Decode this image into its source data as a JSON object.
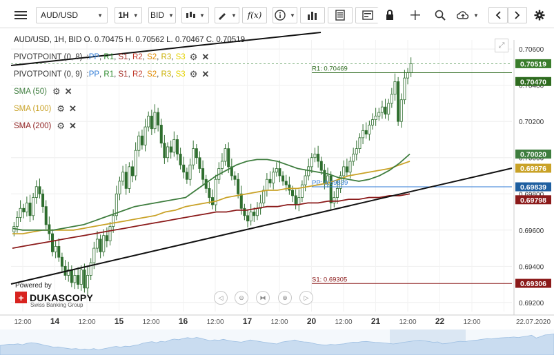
{
  "toolbar": {
    "menu_icon": "hamburger-icon",
    "symbol": "AUD/USD",
    "timeframe": "1H",
    "price_side": "BID",
    "icons": [
      "candle-type-icon",
      "draw-pencil-icon",
      "formula-icon",
      "info-icon",
      "bar-chart-icon",
      "table-icon",
      "lock-icon",
      "crosshair-icon",
      "zoom-icon",
      "cloud-upload-icon",
      "chevron-left-icon",
      "chevron-right-icon",
      "gear-icon"
    ],
    "fx_label": "f(x)"
  },
  "ohlc_text": "AUD/USD, 1H, BID   O. 0.70475 H. 0.70562 L. 0.70467 C. 0.70519",
  "indicators": [
    {
      "title": "PIVOTPOINT (0, 8)",
      "parts": [
        ":",
        "PP",
        ", ",
        "R1",
        ", ",
        "S1",
        ", ",
        "R2",
        ", ",
        "S2",
        ", ",
        "R3",
        ", ",
        "S3"
      ],
      "colors": [
        "#333",
        "#2d7ad6",
        "#333",
        "#2e8b2e",
        "#333",
        "#a0281f",
        "#333",
        "#c0392b",
        "#333",
        "#e08a00",
        "#333",
        "#c9b000",
        "#333",
        "#e6d300"
      ]
    },
    {
      "title": "PIVOTPOINT (0, 9)",
      "parts": [
        ":",
        "PP",
        ", ",
        "R1",
        ", ",
        "S1",
        ", ",
        "R2",
        ", ",
        "S2",
        ", ",
        "R3",
        ", ",
        "S3"
      ],
      "colors": [
        "#333",
        "#2d7ad6",
        "#333",
        "#2e8b2e",
        "#333",
        "#a0281f",
        "#333",
        "#c0392b",
        "#333",
        "#e08a00",
        "#333",
        "#c9b000",
        "#333",
        "#e6d300"
      ]
    },
    {
      "title": "SMA (50)",
      "color": "#3e7d3e"
    },
    {
      "title": "SMA (100)",
      "color": "#c9a227"
    },
    {
      "title": "SMA (200)",
      "color": "#8b1a1a"
    }
  ],
  "pivot_labels": {
    "r1": "R1: 0.70469",
    "s1": "S1: 0.69305",
    "pp": "PP: 0.69839"
  },
  "branding": {
    "powered": "Powered by",
    "name": "DUKASCOPY",
    "sub": "Swiss Banking Group",
    "cross": "+"
  },
  "colors": {
    "up": "#2e8b2e",
    "down": "#b22222",
    "candle": "#2e8b2e",
    "sma50": "#3e7d3e",
    "sma100": "#c9a227",
    "sma200": "#8b1a1a",
    "r1": "#2e6b1f",
    "s1": "#8b1a1a",
    "pp": "#2d7ad6",
    "trend": "#111111"
  },
  "chart_data": {
    "type": "candlestick",
    "symbol": "AUD/USD",
    "interval": "1H",
    "ylim": [
      0.6915,
      0.7065
    ],
    "y_ticks": [
      "0.70600",
      "0.70400",
      "0.70200",
      "0.70000",
      "0.69800",
      "0.69600",
      "0.69400",
      "0.69200"
    ],
    "x_ticks": [
      "12:00",
      "14",
      "12:00",
      "15",
      "12:00",
      "16",
      "12:00",
      "17",
      "12:00",
      "20",
      "12:00",
      "21",
      "12:00",
      "22",
      "12:00",
      "22.07.2020"
    ],
    "price_badges": [
      {
        "label": "0.70519",
        "value": 0.70519,
        "color": "#3a7d2c"
      },
      {
        "label": "0.70470",
        "value": 0.7047,
        "color": "#2e6b1f"
      },
      {
        "label": "0.70020",
        "value": 0.7002,
        "color": "#3e7d3e"
      },
      {
        "label": "0.69976",
        "value": 0.69976,
        "color": "#c9a227"
      },
      {
        "label": "0.69839",
        "value": 0.69839,
        "color": "#1f5fa0"
      },
      {
        "label": "0.69798",
        "value": 0.69798,
        "color": "#8b1a1a"
      },
      {
        "label": "0.69306",
        "value": 0.69306,
        "color": "#8b1a1a"
      }
    ],
    "close": [
      0.6962,
      0.6967,
      0.6972,
      0.697,
      0.6975,
      0.6968,
      0.6978,
      0.6984,
      0.698,
      0.6973,
      0.6963,
      0.6958,
      0.6948,
      0.6951,
      0.6945,
      0.694,
      0.6935,
      0.6938,
      0.6931,
      0.6935,
      0.693,
      0.6938,
      0.6928,
      0.6935,
      0.6942,
      0.695,
      0.6955,
      0.6948,
      0.6957,
      0.6954,
      0.6962,
      0.6968,
      0.698,
      0.6987,
      0.6992,
      0.6983,
      0.6995,
      0.699,
      0.7004,
      0.7012,
      0.7007,
      0.7017,
      0.7023,
      0.7016,
      0.7025,
      0.7018,
      0.7008,
      0.7,
      0.7006,
      0.7003,
      0.701,
      0.7002,
      0.6996,
      0.6992,
      0.6988,
      0.6996,
      0.7005,
      0.7,
      0.6994,
      0.6988,
      0.6983,
      0.6978,
      0.6974,
      0.6988,
      0.6994,
      0.6998,
      0.7005,
      0.6995,
      0.699,
      0.6988,
      0.698,
      0.6972,
      0.6968,
      0.6965,
      0.697,
      0.6968,
      0.6972,
      0.6975,
      0.6982,
      0.6988,
      0.6986,
      0.6992,
      0.6994,
      0.699,
      0.6987,
      0.6985,
      0.6982,
      0.6979,
      0.6974,
      0.6978,
      0.6985,
      0.699,
      0.6995,
      0.7,
      0.7002,
      0.6998,
      0.6993,
      0.6986,
      0.699,
      0.6975,
      0.6978,
      0.6983,
      0.699,
      0.6995,
      0.6992,
      0.6998,
      0.7002,
      0.7005,
      0.7011,
      0.7015,
      0.7013,
      0.7018,
      0.7021,
      0.7023,
      0.7025,
      0.7028,
      0.7024,
      0.703,
      0.7035,
      0.7042,
      0.702,
      0.7032,
      0.7044,
      0.7047,
      0.70519
    ],
    "sma50": [
      0.6961,
      0.696,
      0.696,
      0.696,
      0.696,
      0.6961,
      0.6962,
      0.6963,
      0.6965,
      0.6967,
      0.6969,
      0.6971,
      0.6973,
      0.6974,
      0.6975,
      0.6976,
      0.6977,
      0.6978,
      0.6982,
      0.6986,
      0.699,
      0.6993,
      0.6996,
      0.6998,
      0.6999,
      0.6999,
      0.6998,
      0.6996,
      0.6994,
      0.6993,
      0.6992,
      0.6991,
      0.6989,
      0.6988,
      0.6987,
      0.6988,
      0.699,
      0.6993,
      0.6997,
      0.7002
    ],
    "sma100": [
      0.6958,
      0.6958,
      0.6959,
      0.696,
      0.696,
      0.696,
      0.696,
      0.6961,
      0.6962,
      0.6963,
      0.6964,
      0.6965,
      0.6966,
      0.6967,
      0.6968,
      0.697,
      0.6971,
      0.6973,
      0.6974,
      0.6975,
      0.6976,
      0.6978,
      0.6979,
      0.698,
      0.6981,
      0.6982,
      0.6982,
      0.6983,
      0.6983,
      0.6984,
      0.6985,
      0.6986,
      0.6988,
      0.699,
      0.6991,
      0.6992,
      0.6993,
      0.6994,
      0.6996,
      0.6998
    ],
    "sma200": [
      0.695,
      0.6951,
      0.6952,
      0.6953,
      0.6954,
      0.6955,
      0.6956,
      0.6957,
      0.6958,
      0.6959,
      0.696,
      0.6961,
      0.6962,
      0.6963,
      0.6964,
      0.6965,
      0.6966,
      0.6967,
      0.6968,
      0.6969,
      0.697,
      0.697,
      0.6971,
      0.6971,
      0.6972,
      0.6973,
      0.6973,
      0.6974,
      0.6974,
      0.6975,
      0.6975,
      0.6976,
      0.6976,
      0.6977,
      0.6977,
      0.6978,
      0.6978,
      0.6979,
      0.6979,
      0.698
    ],
    "pivot_r1": 0.70469,
    "pivot_s1": 0.69305,
    "pivot_pp": 0.69839
  }
}
